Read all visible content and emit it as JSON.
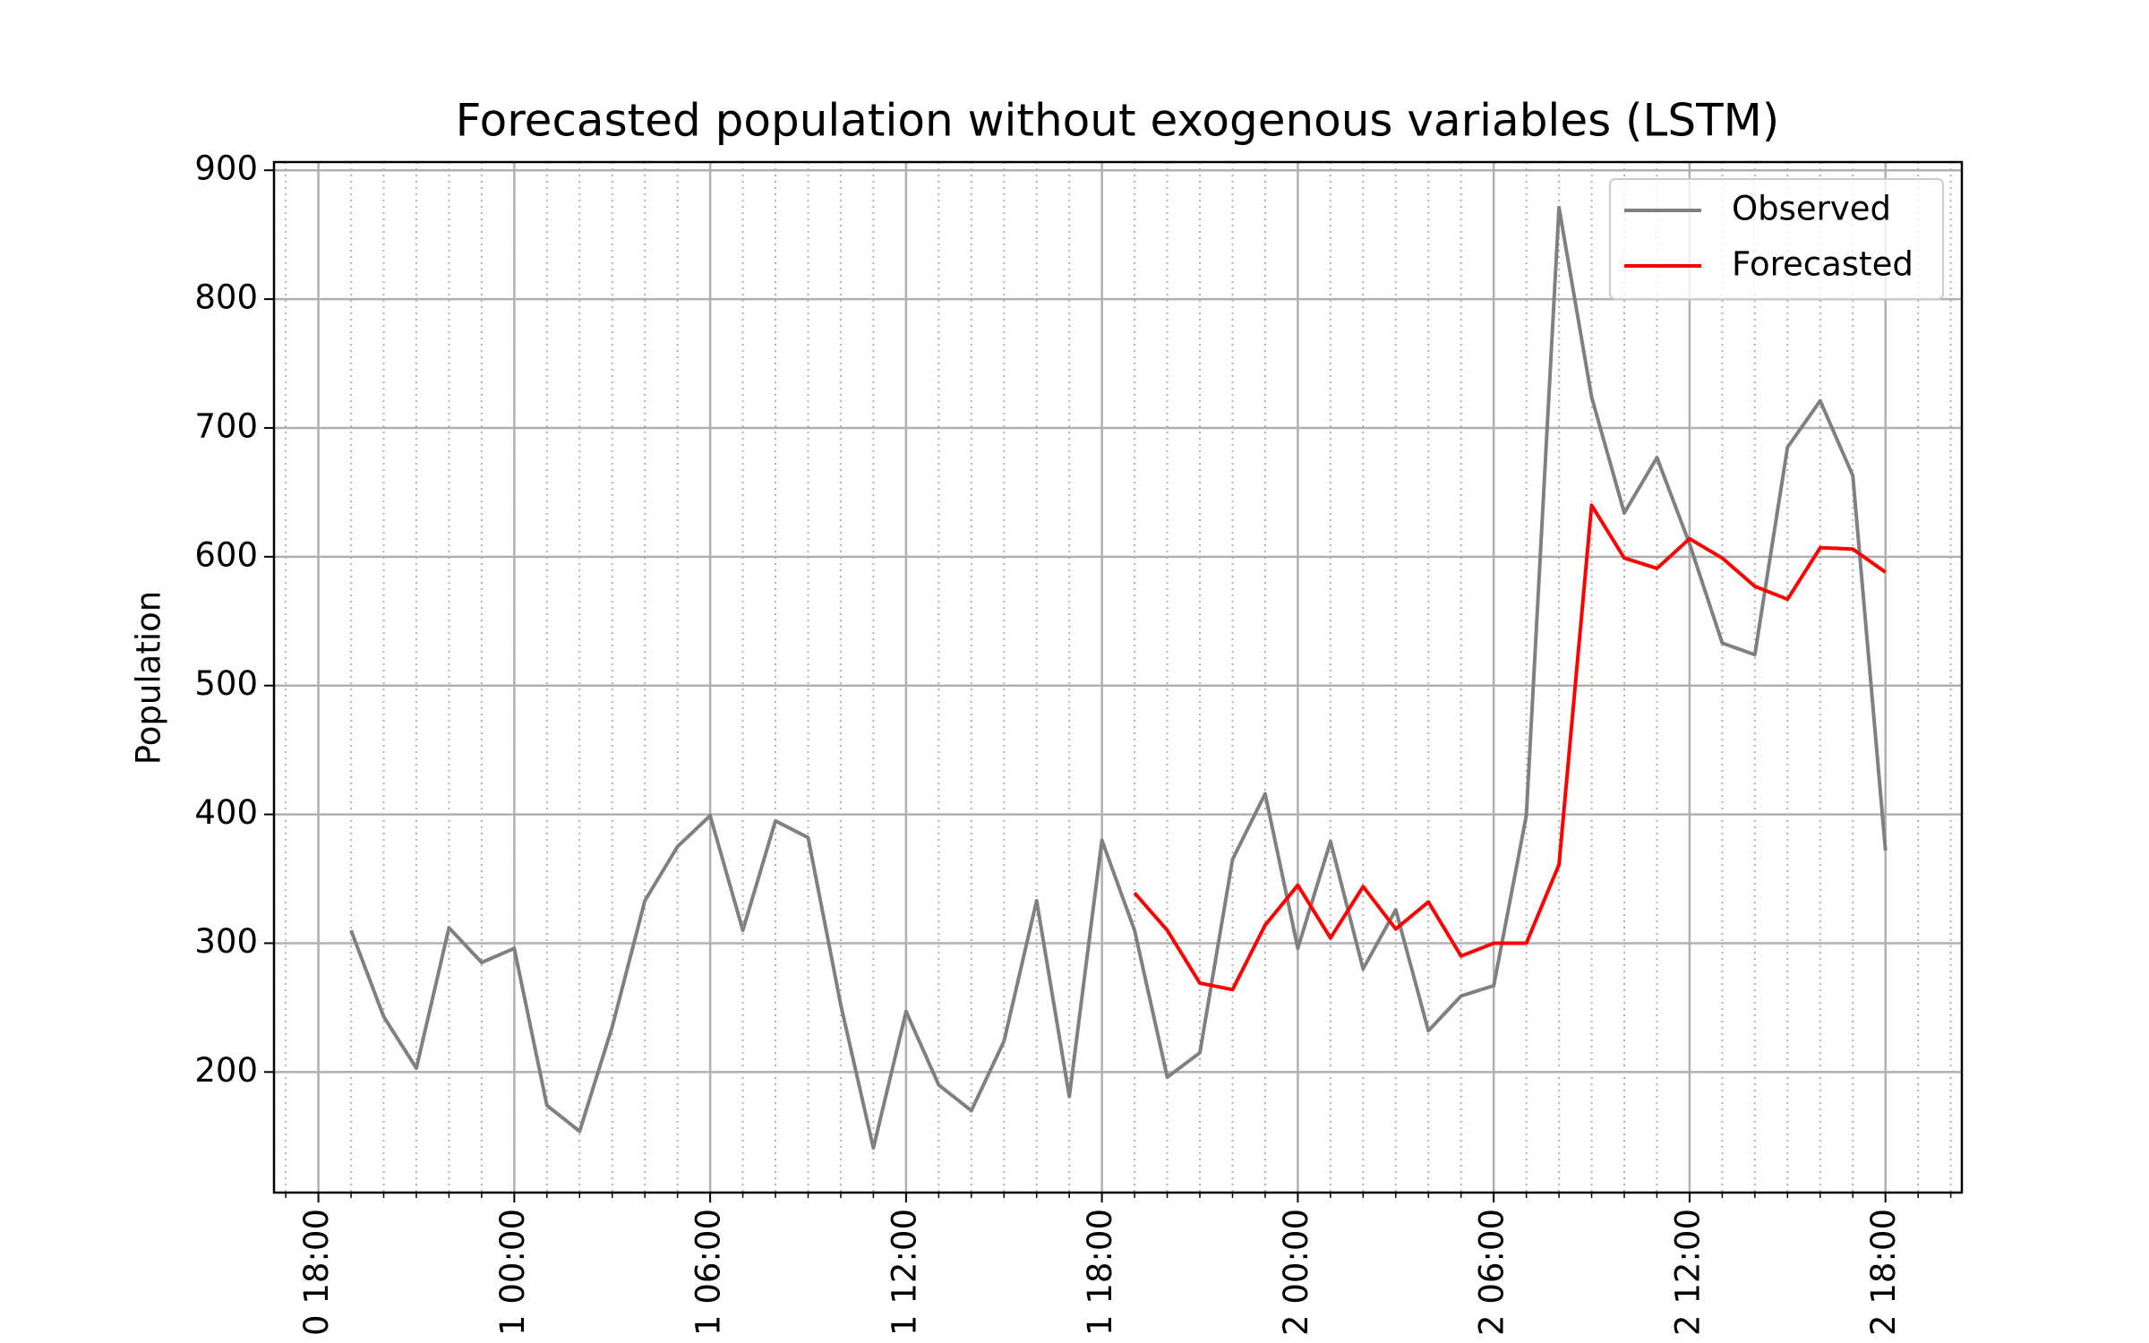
{
  "chart_data": {
    "type": "line",
    "title": "Forecasted population without exogenous variables (LSTM)",
    "y_label": "Population",
    "xlim": [
      -1.36,
      50.34
    ],
    "ylim": [
      106.4,
      906.4
    ],
    "yticks": [
      200,
      300,
      400,
      500,
      600,
      700,
      800,
      900
    ],
    "xticks": [
      {
        "value": 0,
        "label": "0 18:00"
      },
      {
        "value": 6,
        "label": "1 00:00"
      },
      {
        "value": 12,
        "label": "1 06:00"
      },
      {
        "value": 18,
        "label": "1 12:00"
      },
      {
        "value": 24,
        "label": "1 18:00"
      },
      {
        "value": 30,
        "label": "2 00:00"
      },
      {
        "value": 36,
        "label": "2 06:00"
      },
      {
        "value": 42,
        "label": "2 12:00"
      },
      {
        "value": 48,
        "label": "2 18:00"
      }
    ],
    "xminorticks": [
      -1,
      0,
      1,
      2,
      3,
      4,
      5,
      6,
      7,
      8,
      9,
      10,
      11,
      12,
      13,
      14,
      15,
      16,
      17,
      18,
      19,
      20,
      21,
      22,
      23,
      24,
      25,
      26,
      27,
      28,
      29,
      30,
      31,
      32,
      33,
      34,
      35,
      36,
      37,
      38,
      39,
      40,
      41,
      42,
      43,
      44,
      45,
      46,
      47,
      48,
      49,
      50
    ],
    "grid": true,
    "legend": "upper right",
    "series": [
      {
        "name": "Observed",
        "color": "#808080",
        "x": [
          1,
          2,
          3,
          4,
          5,
          6,
          7,
          8,
          9,
          10,
          11,
          12,
          13,
          14,
          15,
          16,
          17,
          18,
          19,
          20,
          21,
          22,
          23,
          24,
          25,
          26,
          27,
          28,
          29,
          30,
          31,
          32,
          33,
          34,
          35,
          36,
          37,
          38,
          39,
          40,
          41,
          42,
          43,
          44,
          45,
          46,
          47,
          48
        ],
        "values": [
          310,
          243,
          203,
          312,
          285,
          296,
          174,
          154,
          235,
          333,
          375,
          399,
          310,
          395,
          382,
          252,
          141,
          247,
          190,
          170,
          224,
          333,
          181,
          380,
          310,
          196,
          215,
          365,
          416,
          296,
          379,
          280,
          326,
          232,
          259,
          267,
          399,
          871,
          724,
          634,
          677,
          610,
          533,
          524,
          685,
          721,
          663,
          372
        ]
      },
      {
        "name": "Forecasted",
        "color": "#ff0000",
        "x": [
          25,
          26,
          27,
          28,
          29,
          30,
          31,
          32,
          33,
          34,
          35,
          36,
          37,
          38,
          39,
          40,
          41,
          42,
          43,
          44,
          45,
          46,
          47,
          48
        ],
        "values": [
          339,
          310,
          269,
          264,
          314,
          345,
          304,
          344,
          311,
          332,
          290,
          300,
          300,
          361,
          640,
          599,
          591,
          614,
          599,
          577,
          567,
          607,
          606,
          588
        ]
      }
    ]
  }
}
